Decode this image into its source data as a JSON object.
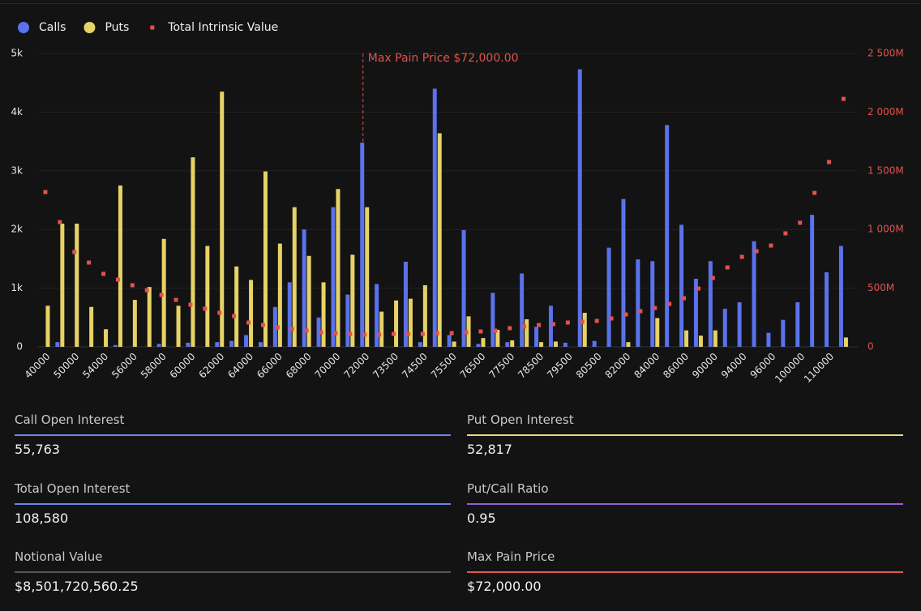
{
  "chart_data": {
    "type": "bar",
    "categories": [
      "40000",
      null,
      "50000",
      null,
      "54000",
      null,
      "56000",
      null,
      "58000",
      null,
      "60000",
      null,
      "62000",
      null,
      "64000",
      null,
      "66000",
      null,
      "68000",
      null,
      "70000",
      null,
      "72000",
      null,
      "73500",
      null,
      "74500",
      null,
      "75500",
      null,
      "76500",
      null,
      "77500",
      null,
      "78500",
      null,
      "79500",
      null,
      "80500",
      null,
      "82000",
      null,
      "84000",
      null,
      "86000",
      null,
      "90000",
      null,
      "94000",
      null,
      "96000",
      null,
      "100000",
      null,
      "110000",
      null
    ],
    "series": [
      {
        "name": "Calls",
        "type": "bar",
        "color": "#5a72ea",
        "values": [
          0,
          80,
          0,
          0,
          0,
          30,
          0,
          0,
          50,
          0,
          70,
          0,
          80,
          100,
          200,
          80,
          680,
          1100,
          2000,
          500,
          2380,
          890,
          3480,
          1070,
          0,
          1450,
          80,
          4400,
          200,
          1990,
          50,
          920,
          80,
          1250,
          340,
          700,
          70,
          4730,
          100,
          1690,
          2520,
          1490,
          1460,
          3780,
          2080,
          1160,
          1460,
          650,
          760,
          1800,
          240,
          460,
          760,
          2250,
          1270,
          1720
        ]
      },
      {
        "name": "Puts",
        "type": "bar",
        "color": "#e6d266",
        "values": [
          700,
          2100,
          2100,
          680,
          300,
          2750,
          800,
          1020,
          1840,
          700,
          3230,
          1720,
          4350,
          1370,
          1140,
          2990,
          1760,
          2380,
          1550,
          1100,
          2690,
          1570,
          2380,
          600,
          790,
          820,
          1050,
          3640,
          90,
          520,
          150,
          290,
          110,
          470,
          80,
          90,
          0,
          580,
          0,
          0,
          80,
          0,
          490,
          0,
          280,
          190,
          280,
          0,
          0,
          0,
          0,
          0,
          0,
          0,
          0,
          160
        ]
      },
      {
        "name": "Total Intrinsic Value",
        "type": "scatter",
        "axis": "y2",
        "color": "#e0534d",
        "values": [
          1319,
          1063,
          808,
          718,
          622,
          573,
          525,
          483,
          442,
          400,
          359,
          325,
          290,
          262,
          207,
          186,
          166,
          152,
          138,
          124,
          117,
          110,
          104,
          104,
          110,
          110,
          110,
          117,
          117,
          124,
          131,
          138,
          159,
          173,
          186,
          193,
          207,
          214,
          221,
          242,
          276,
          304,
          331,
          366,
          414,
          497,
          587,
          677,
          767,
          815,
          863,
          967,
          1057,
          1312,
          1575,
          2113
        ]
      }
    ],
    "ylim": [
      0,
      5000
    ],
    "yticks": [
      0,
      {
        "value": 1000,
        "label": "1k"
      },
      {
        "value": 2000,
        "label": "2k"
      },
      {
        "value": 3000,
        "label": "3k"
      },
      {
        "value": 4000,
        "label": "4k"
      },
      {
        "value": 5000,
        "label": "5k"
      }
    ],
    "y2lim": [
      0,
      2500
    ],
    "y2ticks": [
      0,
      {
        "value": 500,
        "label": "500M"
      },
      {
        "value": 1000,
        "label": "1 000M"
      },
      {
        "value": 1500,
        "label": "1 500M"
      },
      {
        "value": 2000,
        "label": "2 000M"
      },
      {
        "value": 2500,
        "label": "2 500M"
      }
    ],
    "y2color": "#e0534d",
    "grid": true,
    "legend": "top-left",
    "annotation": {
      "text": "Max Pain Price $72,000.00",
      "category": "72000",
      "color": "#e0534d"
    }
  },
  "stats": [
    {
      "label": "Call Open Interest",
      "value": "55,763",
      "color": "#6a86ee"
    },
    {
      "label": "Put Open Interest",
      "value": "52,817",
      "color": "#e8da7e"
    },
    {
      "label": "Total Open Interest",
      "value": "108,580",
      "color": "#6a86ee"
    },
    {
      "label": "Put/Call Ratio",
      "value": "0.95",
      "color": "#9a5ad8"
    },
    {
      "label": "Notional Value",
      "value": "$8,501,720,560.25",
      "color": "#555555"
    },
    {
      "label": "Max Pain Price",
      "value": "$72,000.00",
      "color": "#e2584f"
    }
  ]
}
